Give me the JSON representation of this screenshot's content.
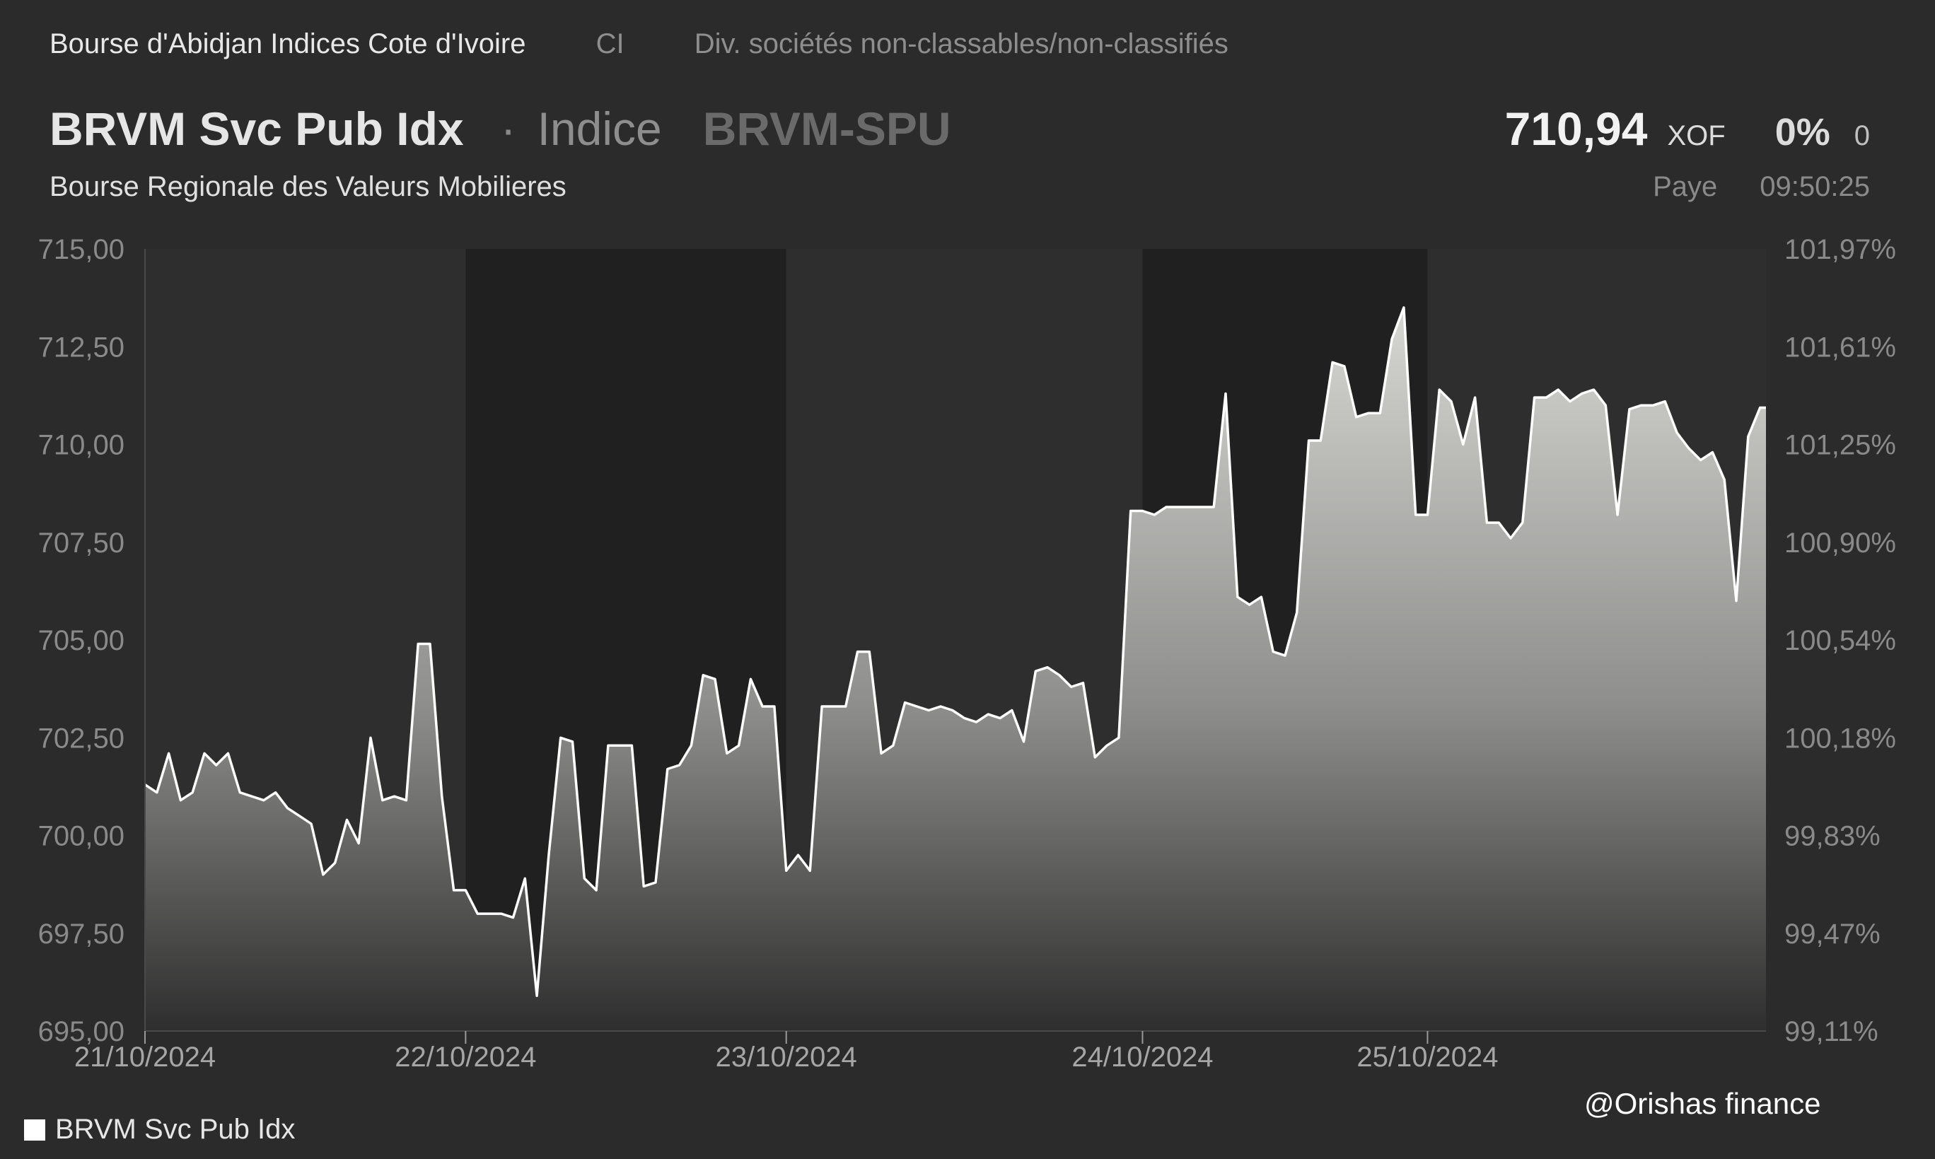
{
  "header": {
    "exchange": "Bourse d'Abidjan Indices Cote d'Ivoire",
    "country": "CI",
    "sector": "Div. sociétés non-classables/non-classifiés",
    "name": "BRVM Svc Pub Idx",
    "separator": "·",
    "type": "Indice",
    "ticker": "BRVM-SPU",
    "exchange_full": "Bourse Regionale des Valeurs Mobilieres"
  },
  "quote": {
    "price": "710,94",
    "currency": "XOF",
    "change_pct": "0%",
    "change": "0",
    "status": "Paye",
    "time": "09:50:25"
  },
  "chart_data": {
    "type": "area",
    "series": [
      {
        "name": "BRVM Svc Pub Idx",
        "color": "#ffffff",
        "points": [
          [
            0,
            701.3
          ],
          [
            2,
            701.1
          ],
          [
            4,
            702.1
          ],
          [
            6,
            700.9
          ],
          [
            8,
            701.1
          ],
          [
            10,
            702.1
          ],
          [
            12,
            701.8
          ],
          [
            14,
            702.1
          ],
          [
            16,
            701.1
          ],
          [
            18,
            701.0
          ],
          [
            20,
            700.9
          ],
          [
            22,
            701.1
          ],
          [
            24,
            700.7
          ],
          [
            26,
            700.5
          ],
          [
            28,
            700.3
          ],
          [
            30,
            699.0
          ],
          [
            32,
            699.3
          ],
          [
            34,
            700.4
          ],
          [
            36,
            699.8
          ],
          [
            38,
            702.5
          ],
          [
            40,
            700.9
          ],
          [
            42,
            701.0
          ],
          [
            44,
            700.9
          ],
          [
            46,
            704.9
          ],
          [
            48,
            704.9
          ],
          [
            50,
            701.0
          ],
          [
            52,
            698.6
          ],
          [
            54,
            698.6
          ],
          [
            56,
            698.0
          ],
          [
            58,
            698.0
          ],
          [
            60,
            698.0
          ],
          [
            62,
            697.9
          ],
          [
            64,
            698.9
          ],
          [
            66,
            695.9
          ],
          [
            68,
            699.5
          ],
          [
            70,
            702.5
          ],
          [
            72,
            702.4
          ],
          [
            74,
            698.9
          ],
          [
            76,
            698.6
          ],
          [
            78,
            702.3
          ],
          [
            80,
            702.3
          ],
          [
            82,
            702.3
          ],
          [
            84,
            698.7
          ],
          [
            86,
            698.8
          ],
          [
            88,
            701.7
          ],
          [
            90,
            701.8
          ],
          [
            92,
            702.3
          ],
          [
            94,
            704.1
          ],
          [
            96,
            704.0
          ],
          [
            98,
            702.1
          ],
          [
            100,
            702.3
          ],
          [
            102,
            704.0
          ],
          [
            104,
            703.3
          ],
          [
            106,
            703.3
          ],
          [
            108,
            699.1
          ],
          [
            110,
            699.5
          ],
          [
            112,
            699.1
          ],
          [
            114,
            703.3
          ],
          [
            116,
            703.3
          ],
          [
            118,
            703.3
          ],
          [
            120,
            704.7
          ],
          [
            122,
            704.7
          ],
          [
            124,
            702.1
          ],
          [
            126,
            702.3
          ],
          [
            128,
            703.4
          ],
          [
            130,
            703.3
          ],
          [
            132,
            703.2
          ],
          [
            134,
            703.3
          ],
          [
            136,
            703.2
          ],
          [
            138,
            703.0
          ],
          [
            140,
            702.9
          ],
          [
            142,
            703.1
          ],
          [
            144,
            703.0
          ],
          [
            146,
            703.2
          ],
          [
            148,
            702.4
          ],
          [
            150,
            704.2
          ],
          [
            152,
            704.3
          ],
          [
            154,
            704.1
          ],
          [
            156,
            703.8
          ],
          [
            158,
            703.9
          ],
          [
            160,
            702.0
          ],
          [
            162,
            702.3
          ],
          [
            164,
            702.5
          ],
          [
            166,
            708.3
          ],
          [
            168,
            708.3
          ],
          [
            170,
            708.2
          ],
          [
            172,
            708.4
          ],
          [
            174,
            708.4
          ],
          [
            176,
            708.4
          ],
          [
            178,
            708.4
          ],
          [
            180,
            708.4
          ],
          [
            182,
            711.3
          ],
          [
            184,
            706.1
          ],
          [
            186,
            705.9
          ],
          [
            188,
            706.1
          ],
          [
            190,
            704.7
          ],
          [
            192,
            704.6
          ],
          [
            194,
            705.7
          ],
          [
            196,
            710.1
          ],
          [
            198,
            710.1
          ],
          [
            200,
            712.1
          ],
          [
            202,
            712.0
          ],
          [
            204,
            710.7
          ],
          [
            206,
            710.8
          ],
          [
            208,
            710.8
          ],
          [
            210,
            712.7
          ],
          [
            212,
            713.5
          ],
          [
            214,
            708.2
          ],
          [
            216,
            708.2
          ],
          [
            218,
            711.4
          ],
          [
            220,
            711.1
          ],
          [
            222,
            710.0
          ],
          [
            224,
            711.2
          ],
          [
            226,
            708.0
          ],
          [
            228,
            708.0
          ],
          [
            230,
            707.6
          ],
          [
            232,
            708.0
          ],
          [
            234,
            711.2
          ],
          [
            236,
            711.2
          ],
          [
            238,
            711.4
          ],
          [
            240,
            711.1
          ],
          [
            242,
            711.3
          ],
          [
            244,
            711.4
          ],
          [
            246,
            711.0
          ],
          [
            248,
            708.2
          ],
          [
            250,
            710.9
          ],
          [
            252,
            711.0
          ],
          [
            254,
            711.0
          ],
          [
            256,
            711.1
          ],
          [
            258,
            710.3
          ],
          [
            260,
            709.9
          ],
          [
            262,
            709.6
          ],
          [
            264,
            709.8
          ],
          [
            266,
            709.1
          ],
          [
            268,
            706.0
          ],
          [
            270,
            710.2
          ],
          [
            272,
            710.94
          ],
          [
            273,
            710.94
          ]
        ]
      }
    ],
    "x_range": [
      0,
      273
    ],
    "x_ticks": [
      {
        "x": 0,
        "label": "21/10/2024"
      },
      {
        "x": 54,
        "label": "22/10/2024"
      },
      {
        "x": 108,
        "label": "23/10/2024"
      },
      {
        "x": 168,
        "label": "24/10/2024"
      },
      {
        "x": 216,
        "label": "25/10/2024"
      }
    ],
    "shaded_x_ranges": [
      [
        54,
        108
      ],
      [
        168,
        216
      ]
    ],
    "ylim": [
      695,
      715
    ],
    "y_ticks_left": [
      "695,00",
      "697,50",
      "700,00",
      "702,50",
      "705,00",
      "707,50",
      "710,00",
      "712,50",
      "715,00"
    ],
    "y_ticks_right": [
      "99,11%",
      "99,47%",
      "99,83%",
      "100,18%",
      "100,54%",
      "100,90%",
      "101,25%",
      "101,61%",
      "101,97%"
    ],
    "legend": "BRVM Svc Pub Idx",
    "legend_placement": "bottom-left"
  },
  "watermark": "@Orishas finance"
}
